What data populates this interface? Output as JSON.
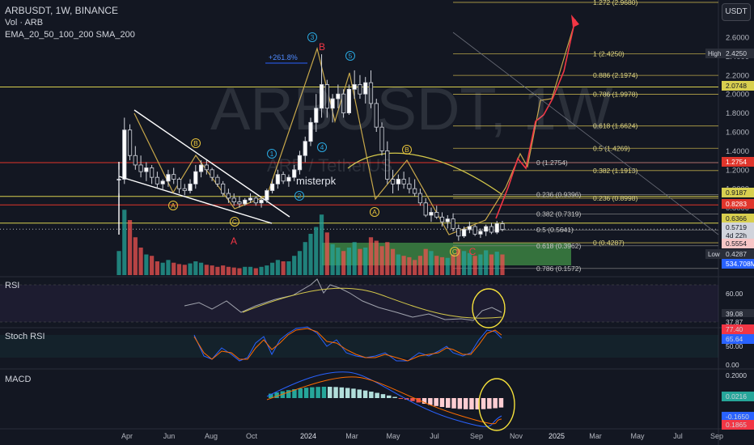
{
  "header": {
    "symbol_line": "ARBUSDT, 1W, BINANCE",
    "vol_line": "Vol · ARB",
    "ema_line": "EMA_20_50_100_200 SMA_200"
  },
  "watermark": {
    "symbol": "ARBUSDT, 1W",
    "sub": "ARB / TetherUS"
  },
  "author": "misterpk",
  "currency_button": "USDT",
  "panels": {
    "rsi": "RSI",
    "stoch": "Stoch RSI",
    "macd": "MACD"
  },
  "colors": {
    "up": "#26a69a",
    "down": "#ef5350",
    "bg": "#131722",
    "fib": "#c7a74a",
    "red_line": "#e53935",
    "yellow_line": "#d4c84a",
    "projection": "#f23645",
    "green_box": "#4caf50"
  },
  "chart_data": {
    "type": "candlestick",
    "title": "ARBUSDT, 1W, BINANCE",
    "y_axis_labels": [
      "2.6000",
      "2.4000",
      "2.2000",
      "2.0000",
      "1.8000",
      "1.6000",
      "1.4000",
      "1.2000",
      "1.0000",
      "0.8000",
      "0.6000",
      "0.4000"
    ],
    "x_axis_labels": [
      "Apr",
      "Jun",
      "Aug",
      "Oct",
      "2024",
      "Mar",
      "May",
      "Jul",
      "Sep",
      "Nov",
      "2025",
      "Mar",
      "May",
      "Jul",
      "Sep"
    ],
    "ylim": [
      0.3,
      2.98
    ],
    "price_badges": [
      {
        "text": "High",
        "value": "2.4250",
        "style": "dark"
      },
      {
        "text": "",
        "value": "2.0748",
        "style": "yellow"
      },
      {
        "text": "",
        "value": "1.2754",
        "style": "red"
      },
      {
        "text": "",
        "value": "0.9187",
        "style": "yellow"
      },
      {
        "text": "",
        "value": "0.8283",
        "style": "red"
      },
      {
        "text": "",
        "value": "0.6366",
        "style": "yellow"
      },
      {
        "text": "",
        "value": "0.5719",
        "style": "white"
      },
      {
        "text": "",
        "value": "4d 22h",
        "style": "white"
      },
      {
        "text": "",
        "value": "0.5554",
        "style": "pink"
      },
      {
        "text": "Low",
        "value": "0.4287",
        "style": "dark"
      },
      {
        "text": "",
        "value": "534.708M",
        "style": "blue"
      }
    ],
    "fib_right": [
      {
        "label": "1.272 (2.9680)",
        "value": 2.968
      },
      {
        "label": "1 (2.4250)",
        "value": 2.425
      },
      {
        "label": "0.886 (2.1974)",
        "value": 2.1974
      },
      {
        "label": "0.786 (1.9978)",
        "value": 1.9978
      },
      {
        "label": "0.618 (1.6624)",
        "value": 1.6624
      },
      {
        "label": "0.5 (1.4269)",
        "value": 1.4269
      },
      {
        "label": "0.382 (1.1913)",
        "value": 1.1913
      },
      {
        "label": "0.236 (0.8998)",
        "value": 0.8998
      },
      {
        "label": "0 (0.4287)",
        "value": 0.4287
      }
    ],
    "fib_left": [
      {
        "label": "0 (1.2754)",
        "value": 1.2754
      },
      {
        "label": "0.236 (0.9396)",
        "value": 0.9396
      },
      {
        "label": "0.382 (0.7319)",
        "value": 0.7319
      },
      {
        "label": "0.5 (0.5641)",
        "value": 0.5641
      },
      {
        "label": "0.618 (0.3962)",
        "value": 0.3962
      },
      {
        "label": "0.786 (0.1572)",
        "value": 0.1572
      }
    ],
    "horizontal_lines": [
      {
        "value": 2.0748,
        "color": "yellow"
      },
      {
        "value": 1.2754,
        "color": "red"
      },
      {
        "value": 0.9187,
        "color": "yellow"
      },
      {
        "value": 0.8283,
        "color": "red"
      },
      {
        "value": 0.6366,
        "color": "yellow"
      }
    ],
    "wave_labels": [
      {
        "text": "3",
        "style": "circle-cyan"
      },
      {
        "text": "B",
        "style": "red"
      },
      {
        "text": "5",
        "style": "circle-cyan"
      },
      {
        "text": "1",
        "style": "circle-cyan"
      },
      {
        "text": "4",
        "style": "circle-cyan"
      },
      {
        "text": "2",
        "style": "circle-cyan"
      },
      {
        "text": "B",
        "style": "circle-yellow"
      },
      {
        "text": "A",
        "style": "circle-yellow"
      },
      {
        "text": "C",
        "style": "circle-yellow"
      },
      {
        "text": "A",
        "style": "red"
      },
      {
        "text": "B",
        "style": "circle-yellow"
      },
      {
        "text": "A",
        "style": "circle-yellow"
      },
      {
        "text": "C",
        "style": "circle-yellow"
      },
      {
        "text": "C",
        "style": "red"
      }
    ],
    "annotation": "+261.8%",
    "candles": [
      [
        1.1,
        1.2,
        0.95,
        1.1
      ],
      [
        1.1,
        1.75,
        1.05,
        1.62
      ],
      [
        1.62,
        1.68,
        1.3,
        1.35
      ],
      [
        1.35,
        1.45,
        1.2,
        1.25
      ],
      [
        1.25,
        1.35,
        1.12,
        1.18
      ],
      [
        1.18,
        1.28,
        1.08,
        1.22
      ],
      [
        1.22,
        1.25,
        1.05,
        1.12
      ],
      [
        1.12,
        1.18,
        1.0,
        1.05
      ],
      [
        1.05,
        1.1,
        0.98,
        1.08
      ],
      [
        1.08,
        1.2,
        1.02,
        1.15
      ],
      [
        1.15,
        1.22,
        1.05,
        1.1
      ],
      [
        1.1,
        1.12,
        0.95,
        1.0
      ],
      [
        1.0,
        1.05,
        0.93,
        0.98
      ],
      [
        0.98,
        1.1,
        0.95,
        1.05
      ],
      [
        1.05,
        1.25,
        1.0,
        1.18
      ],
      [
        1.18,
        1.3,
        1.12,
        1.25
      ],
      [
        1.25,
        1.3,
        1.15,
        1.2
      ],
      [
        1.2,
        1.22,
        1.08,
        1.12
      ],
      [
        1.12,
        1.15,
        1.02,
        1.05
      ],
      [
        1.05,
        1.08,
        0.92,
        0.95
      ],
      [
        0.95,
        1.0,
        0.85,
        0.9
      ],
      [
        0.9,
        0.95,
        0.82,
        0.86
      ],
      [
        0.86,
        0.92,
        0.8,
        0.84
      ],
      [
        0.84,
        0.9,
        0.82,
        0.88
      ],
      [
        0.88,
        0.95,
        0.85,
        0.9
      ],
      [
        0.9,
        0.92,
        0.82,
        0.85
      ],
      [
        0.85,
        0.9,
        0.8,
        0.88
      ],
      [
        0.88,
        1.0,
        0.85,
        0.98
      ],
      [
        0.98,
        1.1,
        0.95,
        1.05
      ],
      [
        1.05,
        1.2,
        1.0,
        1.15
      ],
      [
        1.15,
        1.18,
        1.05,
        1.08
      ],
      [
        1.08,
        1.15,
        1.02,
        1.12
      ],
      [
        1.12,
        1.25,
        1.08,
        1.2
      ],
      [
        1.2,
        1.4,
        1.15,
        1.35
      ],
      [
        1.35,
        1.55,
        1.28,
        1.5
      ],
      [
        1.5,
        1.75,
        1.45,
        1.7
      ],
      [
        1.7,
        2.0,
        1.6,
        1.85
      ],
      [
        1.85,
        2.42,
        1.75,
        2.1
      ],
      [
        2.1,
        2.15,
        1.75,
        1.85
      ],
      [
        1.85,
        2.0,
        1.7,
        1.95
      ],
      [
        1.95,
        2.1,
        1.85,
        2.0
      ],
      [
        2.0,
        2.05,
        1.75,
        1.8
      ],
      [
        1.8,
        2.1,
        1.78,
        2.05
      ],
      [
        2.05,
        2.25,
        1.95,
        2.1
      ],
      [
        2.1,
        2.2,
        1.95,
        2.0
      ],
      [
        2.0,
        2.18,
        1.9,
        2.12
      ],
      [
        2.12,
        2.25,
        1.85,
        1.9
      ],
      [
        1.9,
        1.95,
        1.6,
        1.65
      ],
      [
        1.65,
        1.7,
        1.35,
        1.4
      ],
      [
        1.4,
        1.5,
        1.05,
        1.1
      ],
      [
        1.1,
        1.2,
        0.95,
        1.05
      ],
      [
        1.05,
        1.15,
        0.98,
        1.1
      ],
      [
        1.1,
        1.18,
        1.0,
        1.05
      ],
      [
        1.05,
        1.12,
        0.95,
        1.0
      ],
      [
        1.0,
        1.1,
        0.92,
        0.95
      ],
      [
        0.95,
        1.0,
        0.82,
        0.85
      ],
      [
        0.85,
        0.9,
        0.7,
        0.72
      ],
      [
        0.72,
        0.8,
        0.65,
        0.75
      ],
      [
        0.75,
        0.82,
        0.68,
        0.7
      ],
      [
        0.7,
        0.75,
        0.6,
        0.65
      ],
      [
        0.65,
        0.72,
        0.58,
        0.68
      ],
      [
        0.68,
        0.74,
        0.55,
        0.58
      ],
      [
        0.58,
        0.62,
        0.45,
        0.5
      ],
      [
        0.5,
        0.6,
        0.48,
        0.57
      ],
      [
        0.57,
        0.65,
        0.53,
        0.6
      ],
      [
        0.6,
        0.62,
        0.5,
        0.52
      ],
      [
        0.52,
        0.58,
        0.48,
        0.55
      ],
      [
        0.55,
        0.62,
        0.5,
        0.6
      ],
      [
        0.6,
        0.64,
        0.52,
        0.54
      ],
      [
        0.54,
        0.66,
        0.52,
        0.63
      ],
      [
        0.63,
        0.66,
        0.55,
        0.57
      ]
    ],
    "volume": [
      0.35,
      0.95,
      0.8,
      0.55,
      0.4,
      0.3,
      0.28,
      0.2,
      0.18,
      0.22,
      0.18,
      0.16,
      0.15,
      0.17,
      0.2,
      0.18,
      0.15,
      0.14,
      0.12,
      0.14,
      0.12,
      0.11,
      0.1,
      0.12,
      0.12,
      0.1,
      0.12,
      0.14,
      0.18,
      0.22,
      0.2,
      0.2,
      0.28,
      0.35,
      0.48,
      0.6,
      0.7,
      0.88,
      0.62,
      0.45,
      0.4,
      0.35,
      0.4,
      0.48,
      0.38,
      0.4,
      0.55,
      0.5,
      0.42,
      0.48,
      0.38,
      0.3,
      0.28,
      0.26,
      0.22,
      0.28,
      0.38,
      0.35,
      0.28,
      0.26,
      0.25,
      0.3,
      0.38,
      0.35,
      0.32,
      0.28,
      0.3,
      0.36,
      0.3,
      0.34,
      0.3
    ],
    "rsi_axis": [
      "60.00",
      "39.08",
      "37.87"
    ],
    "stoch_axis": [
      "77.40",
      "65.64",
      "50.00",
      "0.00"
    ],
    "macd_axis": [
      "0.2000",
      "0.0216",
      "-0.1650",
      "0.1865"
    ]
  }
}
